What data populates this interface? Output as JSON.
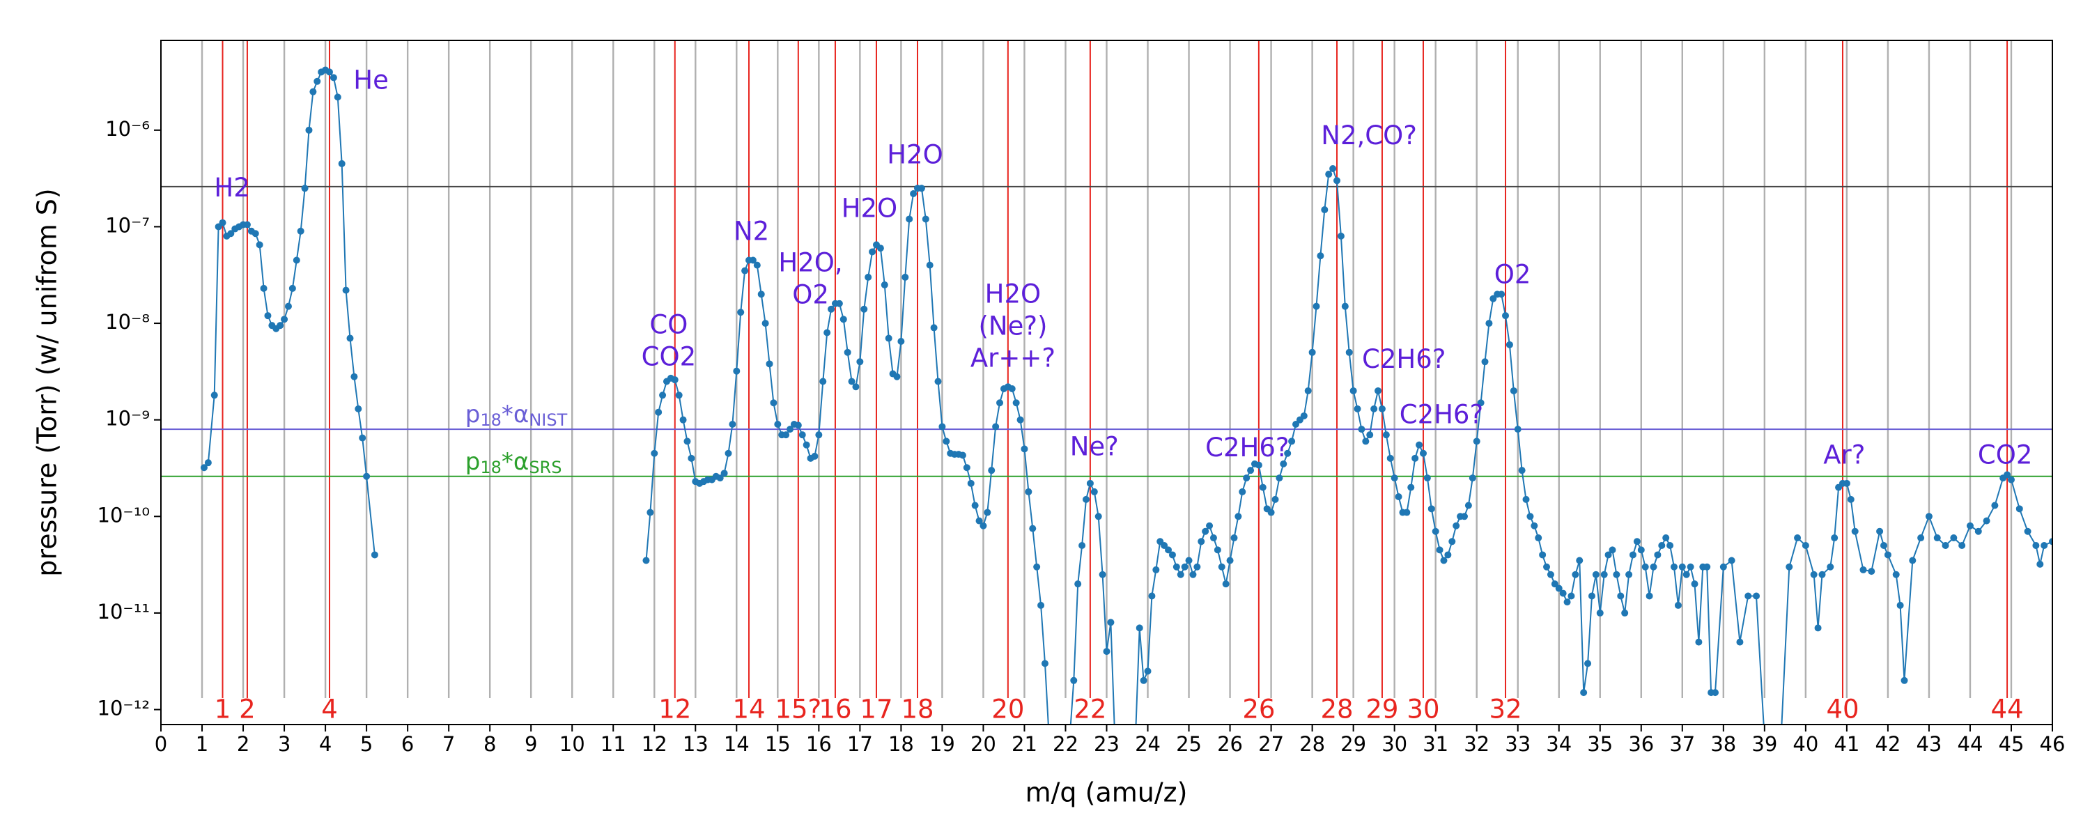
{
  "chart_data": {
    "type": "line",
    "xlabel": "m/q (amu/z)",
    "ylabel": "pressure (Torr) (w/ unifrom S)",
    "log_y": true,
    "xlim": [
      0,
      46
    ],
    "ylim": [
      7e-13,
      8.5e-06
    ],
    "xticks": [
      0,
      1,
      2,
      3,
      4,
      5,
      6,
      7,
      8,
      9,
      10,
      11,
      12,
      13,
      14,
      15,
      16,
      17,
      18,
      19,
      20,
      21,
      22,
      23,
      24,
      25,
      26,
      27,
      28,
      29,
      30,
      31,
      32,
      33,
      34,
      35,
      36,
      37,
      38,
      39,
      40,
      41,
      42,
      43,
      44,
      45,
      46
    ],
    "yticks": [
      {
        "value": 1e-12,
        "label": "10⁻¹²"
      },
      {
        "value": 1e-11,
        "label": "10⁻¹¹"
      },
      {
        "value": 1e-10,
        "label": "10⁻¹⁰"
      },
      {
        "value": 1e-09,
        "label": "10⁻⁹"
      },
      {
        "value": 1e-08,
        "label": "10⁻⁸"
      },
      {
        "value": 1e-07,
        "label": "10⁻⁷"
      },
      {
        "value": 1e-06,
        "label": "10⁻⁶"
      }
    ],
    "mass_lines": {
      "color": "#b0b0b0",
      "x": [
        1,
        2,
        3,
        4,
        5,
        6,
        7,
        8,
        9,
        10,
        11,
        12,
        13,
        14,
        15,
        16,
        17,
        18,
        19,
        20,
        21,
        22,
        23,
        24,
        25,
        26,
        27,
        28,
        29,
        30,
        31,
        32,
        33,
        34,
        35,
        36,
        37,
        38,
        39,
        40,
        41,
        42,
        43,
        44,
        45
      ]
    },
    "marker_lines": {
      "color": "#e8251f",
      "items": [
        {
          "x": 1.5,
          "label": "1"
        },
        {
          "x": 2.1,
          "label": "2"
        },
        {
          "x": 4.1,
          "label": "4"
        },
        {
          "x": 12.5,
          "label": "12"
        },
        {
          "x": 14.3,
          "label": "14"
        },
        {
          "x": 15.5,
          "label": "15?"
        },
        {
          "x": 16.4,
          "label": "16"
        },
        {
          "x": 17.4,
          "label": "17"
        },
        {
          "x": 18.4,
          "label": "18"
        },
        {
          "x": 20.6,
          "label": "20"
        },
        {
          "x": 22.6,
          "label": "22"
        },
        {
          "x": 26.7,
          "label": "26"
        },
        {
          "x": 28.6,
          "label": "28"
        },
        {
          "x": 29.7,
          "label": "29"
        },
        {
          "x": 30.7,
          "label": "30"
        },
        {
          "x": 32.7,
          "label": "32"
        },
        {
          "x": 40.9,
          "label": "40"
        },
        {
          "x": 44.9,
          "label": "44"
        }
      ]
    },
    "hlines": [
      {
        "y": 2.6e-07,
        "color": "#444444"
      },
      {
        "y": 8e-10,
        "color": "#6a5fd6",
        "label_x": 7.4,
        "label_parts": [
          {
            "text": "p"
          },
          {
            "text": "18",
            "sub": true
          },
          {
            "text": "*α"
          },
          {
            "text": "NIST",
            "sub": true
          }
        ]
      },
      {
        "y": 2.6e-10,
        "color": "#2ca02c",
        "label_x": 7.4,
        "label_parts": [
          {
            "text": "p"
          },
          {
            "text": "18",
            "sub": true
          },
          {
            "text": "*α"
          },
          {
            "text": "SRS",
            "sub": true
          }
        ]
      }
    ],
    "annotation_color": "#5c1fd9",
    "annotations": [
      {
        "x": 1.73,
        "y": 2.45e-07,
        "lines": [
          "H2"
        ]
      },
      {
        "x": 5.11,
        "y": 3.2e-06,
        "lines": [
          "He"
        ]
      },
      {
        "x": 12.35,
        "y": 9.4e-09,
        "lines": [
          "CO",
          "CO2"
        ]
      },
      {
        "x": 14.36,
        "y": 8.7e-08,
        "lines": [
          "N2"
        ]
      },
      {
        "x": 15.8,
        "y": 4.1e-08,
        "lines": [
          "H2O,",
          "O2"
        ]
      },
      {
        "x": 17.23,
        "y": 1.5e-07,
        "lines": [
          "H2O"
        ]
      },
      {
        "x": 18.34,
        "y": 5.4e-07,
        "lines": [
          "H2O"
        ]
      },
      {
        "x": 20.72,
        "y": 1.95e-08,
        "lines": [
          "H2O",
          "(Ne?)",
          "Ar++?"
        ]
      },
      {
        "x": 22.7,
        "y": 5.1e-10,
        "lines": [
          "Ne?"
        ]
      },
      {
        "x": 26.42,
        "y": 5e-10,
        "lines": [
          "C2H6?"
        ]
      },
      {
        "x": 29.38,
        "y": 8.5e-07,
        "lines": [
          "N2,CO?"
        ]
      },
      {
        "x": 30.23,
        "y": 4.1e-09,
        "lines": [
          "C2H6?"
        ]
      },
      {
        "x": 31.14,
        "y": 1.1e-09,
        "lines": [
          "C2H6?"
        ]
      },
      {
        "x": 32.87,
        "y": 3.1e-08,
        "lines": [
          "O2"
        ]
      },
      {
        "x": 40.94,
        "y": 4.2e-10,
        "lines": [
          "Ar?"
        ]
      },
      {
        "x": 44.85,
        "y": 4.2e-10,
        "lines": [
          "CO2"
        ]
      }
    ],
    "series": [
      {
        "color": "#1f77b4",
        "x": [
          1.05,
          1.15,
          1.3,
          1.4,
          1.5,
          1.6,
          1.7,
          1.8,
          1.9,
          2.0,
          2.1,
          2.2,
          2.3,
          2.4,
          2.5,
          2.6,
          2.7,
          2.8,
          2.9,
          3.0,
          3.1,
          3.2,
          3.3,
          3.4,
          3.5,
          3.6,
          3.7,
          3.8,
          3.9,
          4.0,
          4.1,
          4.2,
          4.3,
          4.4,
          4.5,
          4.6,
          4.7,
          4.8,
          4.9,
          5.0,
          5.2,
          8.0,
          11.8,
          11.9,
          12.0,
          12.1,
          12.2,
          12.3,
          12.4,
          12.5,
          12.6,
          12.7,
          12.8,
          12.9,
          13.0,
          13.1,
          13.2,
          13.3,
          13.4,
          13.5,
          13.6,
          13.7,
          13.8,
          13.9,
          14.0,
          14.1,
          14.2,
          14.3,
          14.4,
          14.5,
          14.6,
          14.7,
          14.8,
          14.9,
          15.0,
          15.1,
          15.2,
          15.3,
          15.4,
          15.5,
          15.6,
          15.7,
          15.8,
          15.9,
          16.0,
          16.1,
          16.2,
          16.3,
          16.4,
          16.5,
          16.6,
          16.7,
          16.8,
          16.9,
          17.0,
          17.1,
          17.2,
          17.3,
          17.4,
          17.5,
          17.6,
          17.7,
          17.8,
          17.9,
          18.0,
          18.1,
          18.2,
          18.3,
          18.4,
          18.5,
          18.6,
          18.7,
          18.8,
          18.9,
          19.0,
          19.1,
          19.2,
          19.3,
          19.4,
          19.5,
          19.6,
          19.7,
          19.8,
          19.9,
          20.0,
          20.1,
          20.2,
          20.3,
          20.4,
          20.5,
          20.6,
          20.7,
          20.8,
          20.9,
          21.0,
          21.1,
          21.2,
          21.3,
          21.4,
          21.5,
          21.6,
          22.1,
          22.2,
          22.3,
          22.4,
          22.5,
          22.6,
          22.7,
          22.8,
          22.9,
          23.0,
          23.1,
          23.2,
          23.7,
          23.8,
          23.9,
          24.0,
          24.1,
          24.2,
          24.3,
          24.4,
          24.5,
          24.6,
          24.7,
          24.8,
          24.9,
          25.0,
          25.1,
          25.2,
          25.3,
          25.4,
          25.5,
          25.6,
          25.7,
          25.8,
          25.9,
          26.0,
          26.1,
          26.2,
          26.3,
          26.4,
          26.5,
          26.6,
          26.7,
          26.8,
          26.9,
          27.0,
          27.1,
          27.2,
          27.3,
          27.4,
          27.5,
          27.6,
          27.7,
          27.8,
          27.9,
          28.0,
          28.1,
          28.2,
          28.3,
          28.4,
          28.5,
          28.6,
          28.7,
          28.8,
          28.9,
          29.0,
          29.1,
          29.2,
          29.3,
          29.4,
          29.5,
          29.6,
          29.7,
          29.8,
          29.9,
          30.0,
          30.1,
          30.2,
          30.3,
          30.4,
          30.5,
          30.6,
          30.7,
          30.8,
          30.9,
          31.0,
          31.1,
          31.2,
          31.3,
          31.4,
          31.5,
          31.6,
          31.7,
          31.8,
          31.9,
          32.0,
          32.1,
          32.2,
          32.3,
          32.4,
          32.5,
          32.6,
          32.7,
          32.8,
          32.9,
          33.0,
          33.1,
          33.2,
          33.3,
          33.4,
          33.5,
          33.6,
          33.7,
          33.8,
          33.9,
          34.0,
          34.1,
          34.2,
          34.3,
          34.4,
          34.5,
          34.6,
          34.7,
          34.8,
          34.9,
          35.0,
          35.1,
          35.2,
          35.3,
          35.4,
          35.5,
          35.6,
          35.7,
          35.8,
          35.9,
          36.0,
          36.1,
          36.2,
          36.3,
          36.4,
          36.5,
          36.6,
          36.7,
          36.8,
          36.9,
          37.0,
          37.1,
          37.2,
          37.3,
          37.4,
          37.5,
          37.6,
          37.7,
          37.8,
          38.0,
          38.2,
          38.4,
          38.6,
          38.8,
          39.0,
          39.4,
          39.6,
          39.8,
          40.0,
          40.2,
          40.3,
          40.4,
          40.6,
          40.7,
          40.8,
          40.9,
          41.0,
          41.1,
          41.2,
          41.4,
          41.6,
          41.8,
          41.9,
          42.0,
          42.2,
          42.3,
          42.4,
          42.6,
          42.8,
          43.0,
          43.2,
          43.4,
          43.6,
          43.8,
          44.0,
          44.2,
          44.4,
          44.6,
          44.8,
          44.9,
          45.0,
          45.2,
          45.4,
          45.6,
          45.7,
          45.8,
          46.0
        ],
        "values": [
          3.2e-10,
          3.6e-10,
          1.8e-09,
          1e-07,
          1.1e-07,
          8e-08,
          8.5e-08,
          9.5e-08,
          1e-07,
          1.05e-07,
          1.05e-07,
          9e-08,
          8.5e-08,
          6.5e-08,
          2.3e-08,
          1.2e-08,
          9.5e-09,
          8.8e-09,
          9.5e-09,
          1.1e-08,
          1.5e-08,
          2.3e-08,
          4.5e-08,
          9e-08,
          2.5e-07,
          1e-06,
          2.5e-06,
          3.2e-06,
          4e-06,
          4.2e-06,
          4e-06,
          3.5e-06,
          2.2e-06,
          4.5e-07,
          2.2e-08,
          7e-09,
          2.8e-09,
          1.3e-09,
          6.5e-10,
          2.6e-10,
          4e-11,
          null,
          3.5e-11,
          1.1e-10,
          4.5e-10,
          1.2e-09,
          1.8e-09,
          2.5e-09,
          2.7e-09,
          2.6e-09,
          1.8e-09,
          1e-09,
          6e-10,
          4e-10,
          2.3e-10,
          2.2e-10,
          2.3e-10,
          2.4e-10,
          2.4e-10,
          2.6e-10,
          2.5e-10,
          2.8e-10,
          4.5e-10,
          9e-10,
          3.2e-09,
          1.3e-08,
          3.5e-08,
          4.5e-08,
          4.5e-08,
          4e-08,
          2e-08,
          1e-08,
          3.8e-09,
          1.5e-09,
          9e-10,
          7e-10,
          7e-10,
          8e-10,
          9e-10,
          8.8e-10,
          7e-10,
          5.5e-10,
          4e-10,
          4.2e-10,
          7e-10,
          2.5e-09,
          8e-09,
          1.4e-08,
          1.6e-08,
          1.6e-08,
          1.1e-08,
          5e-09,
          2.5e-09,
          2.2e-09,
          4e-09,
          1.4e-08,
          3e-08,
          5.5e-08,
          6.5e-08,
          6e-08,
          2.5e-08,
          7e-09,
          3e-09,
          2.8e-09,
          6.5e-09,
          3e-08,
          1.2e-07,
          2.2e-07,
          2.5e-07,
          2.5e-07,
          1.2e-07,
          4e-08,
          9e-09,
          2.5e-09,
          8.5e-10,
          6e-10,
          4.5e-10,
          4.4e-10,
          4.4e-10,
          4.3e-10,
          3.2e-10,
          2.2e-10,
          1.3e-10,
          9e-11,
          8e-11,
          1.1e-10,
          3e-10,
          8.5e-10,
          1.5e-09,
          2.1e-09,
          2.2e-09,
          2.1e-09,
          1.5e-09,
          1e-09,
          5e-10,
          1.8e-10,
          7.5e-11,
          3e-11,
          1.2e-11,
          3e-12,
          5e-13,
          5e-13,
          2e-12,
          2e-11,
          5e-11,
          1.5e-10,
          2.2e-10,
          1.8e-10,
          1e-10,
          2.5e-11,
          4e-12,
          8e-12,
          5e-13,
          5e-13,
          7e-12,
          2e-12,
          2.5e-12,
          1.5e-11,
          2.8e-11,
          5.5e-11,
          5e-11,
          4.5e-11,
          4e-11,
          3e-11,
          2.5e-11,
          3e-11,
          3.5e-11,
          2.5e-11,
          3e-11,
          5.5e-11,
          7e-11,
          8e-11,
          6e-11,
          4.5e-11,
          3e-11,
          2e-11,
          3.5e-11,
          6e-11,
          1e-10,
          1.8e-10,
          2.5e-10,
          3e-10,
          3.5e-10,
          3.4e-10,
          2e-10,
          1.2e-10,
          1.1e-10,
          1.5e-10,
          2.5e-10,
          3.5e-10,
          4.5e-10,
          6e-10,
          9e-10,
          1e-09,
          1.1e-09,
          2e-09,
          5e-09,
          1.5e-08,
          5e-08,
          1.5e-07,
          3.5e-07,
          4e-07,
          3e-07,
          8e-08,
          1.5e-08,
          5e-09,
          2e-09,
          1.3e-09,
          8e-10,
          6e-10,
          7e-10,
          1.3e-09,
          2e-09,
          1.3e-09,
          7e-10,
          4e-10,
          2.5e-10,
          1.6e-10,
          1.1e-10,
          1.1e-10,
          2e-10,
          4e-10,
          5.5e-10,
          4.5e-10,
          2.5e-10,
          1.2e-10,
          7e-11,
          4.5e-11,
          3.5e-11,
          4e-11,
          5.5e-11,
          8e-11,
          1e-10,
          1e-10,
          1.3e-10,
          2.5e-10,
          6e-10,
          1.5e-09,
          4e-09,
          1e-08,
          1.8e-08,
          2e-08,
          2e-08,
          1.2e-08,
          6e-09,
          2e-09,
          8e-10,
          3e-10,
          1.5e-10,
          1e-10,
          8e-11,
          6e-11,
          4e-11,
          3e-11,
          2.5e-11,
          2e-11,
          1.8e-11,
          1.6e-11,
          1.3e-11,
          1.5e-11,
          2.5e-11,
          3.5e-11,
          1.5e-12,
          3e-12,
          1.5e-11,
          2.5e-11,
          1e-11,
          2.5e-11,
          4e-11,
          4.5e-11,
          2.5e-11,
          1.5e-11,
          1e-11,
          2.5e-11,
          4e-11,
          5.5e-11,
          4.5e-11,
          3e-11,
          1.5e-11,
          3e-11,
          4e-11,
          5e-11,
          6e-11,
          5e-11,
          3e-11,
          1.2e-11,
          3e-11,
          2.5e-11,
          3e-11,
          2e-11,
          5e-12,
          3e-11,
          3e-11,
          1.5e-12,
          1.5e-12,
          3e-11,
          3.5e-11,
          5e-12,
          1.5e-11,
          1.5e-11,
          5e-13,
          5e-13,
          3e-11,
          6e-11,
          5e-11,
          2.5e-11,
          7e-12,
          2.5e-11,
          3e-11,
          6e-11,
          2e-10,
          2.2e-10,
          2.2e-10,
          1.5e-10,
          7e-11,
          2.8e-11,
          2.7e-11,
          7e-11,
          5e-11,
          4e-11,
          2.5e-11,
          1.2e-11,
          2e-12,
          3.5e-11,
          6e-11,
          1e-10,
          6e-11,
          5e-11,
          6e-11,
          5e-11,
          8e-11,
          7e-11,
          9e-11,
          1.3e-10,
          2.5e-10,
          2.7e-10,
          2.4e-10,
          1.2e-10,
          7e-11,
          5e-11,
          3.2e-11,
          5e-11,
          5.5e-11
        ]
      }
    ]
  }
}
